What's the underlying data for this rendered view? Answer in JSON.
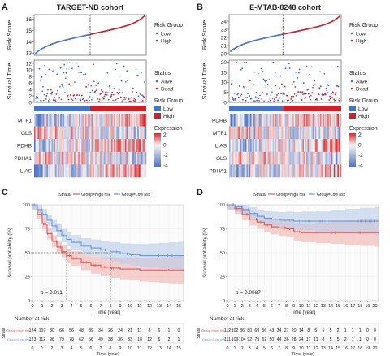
{
  "colors": {
    "low": "#4a74c0",
    "high": "#c8232b",
    "alive": "#3f6fd0",
    "dead": "#c81e2a",
    "km_high": "#e0575b",
    "km_high_ci": "#f2b2ae",
    "km_low": "#6f96d4",
    "km_low_ci": "#b8cde9",
    "heat_low": "#4a6fc0",
    "heat_mid": "#f4f4f4",
    "heat_high": "#d8282e"
  },
  "panel_labels": {
    "A": "A",
    "B": "B",
    "C": "C",
    "D": "D"
  },
  "chart_data": [
    {
      "type": "scatter",
      "panel": "A",
      "title": "TARGET-NB cohort",
      "risk_score": {
        "ylabel": "Risk Score",
        "yticks": [
          13,
          14,
          15,
          16
        ],
        "ylim": [
          12.8,
          16.4
        ],
        "range": [
          13.0,
          16.3
        ],
        "cutoff_fraction": 0.5
      },
      "survival_time": {
        "ylabel": "Survival Time",
        "yticks": [
          0,
          2,
          4,
          6,
          8,
          10,
          12
        ],
        "ylim": [
          0,
          13
        ]
      },
      "risk_group_legend": {
        "title": "Risk Group",
        "items": [
          "Low",
          "High"
        ]
      },
      "status_legend": {
        "title": "Status",
        "items": [
          "Alive",
          "Dead"
        ]
      },
      "bar_legend": {
        "title": "Risk Group",
        "items": [
          "Low",
          "High"
        ]
      },
      "heatmap": {
        "genes": [
          "MTF1",
          "GLS",
          "PDHB",
          "PDHA1",
          "LIAS"
        ],
        "legend_title": "Expression",
        "legend_ticks": [
          2,
          0,
          -2,
          -4
        ]
      }
    },
    {
      "type": "scatter",
      "panel": "B",
      "title": "E-MTAB-8248 cohort",
      "risk_score": {
        "ylabel": "Risk Score",
        "yticks": [
          20,
          21,
          22,
          23,
          24
        ],
        "ylim": [
          19.8,
          24.8
        ],
        "range": [
          20.3,
          24.6
        ],
        "cutoff_fraction": 0.48
      },
      "survival_time": {
        "ylabel": "Survival Time",
        "yticks": [
          0,
          5,
          10,
          15,
          20
        ],
        "ylim": [
          0,
          21
        ]
      },
      "risk_group_legend": {
        "title": "Risk Group",
        "items": [
          "Low",
          "High"
        ]
      },
      "status_legend": {
        "title": "Status",
        "items": [
          "Alive",
          "Dead"
        ]
      },
      "bar_legend": {
        "title": "Risk Group",
        "items": [
          "Low",
          "High"
        ]
      },
      "heatmap": {
        "genes": [
          "PDHB",
          "MTF1",
          "LIAS",
          "GLS",
          "PDHA1"
        ],
        "legend_title": "Expression",
        "legend_ticks": [
          2,
          0,
          -2,
          -4
        ]
      }
    },
    {
      "type": "line",
      "panel": "C",
      "legend_title": "Strata",
      "series": [
        {
          "name": "Group=High risk",
          "x": [
            0,
            0.5,
            1,
            1.5,
            2,
            2.5,
            3,
            3.5,
            4,
            5,
            6,
            7,
            8,
            9,
            10,
            11,
            12,
            13,
            14,
            15
          ],
          "y": [
            1.0,
            0.9,
            0.8,
            0.7,
            0.62,
            0.56,
            0.51,
            0.47,
            0.44,
            0.4,
            0.37,
            0.35,
            0.34,
            0.33,
            0.33,
            0.32,
            0.32,
            0.32,
            0.32,
            0.32
          ]
        },
        {
          "name": "Group=Low risk",
          "x": [
            0,
            0.5,
            1,
            1.5,
            2,
            2.5,
            3,
            3.5,
            4,
            5,
            6,
            7,
            8,
            9,
            10,
            11,
            12,
            13,
            14,
            15
          ],
          "y": [
            1.0,
            0.95,
            0.9,
            0.84,
            0.78,
            0.73,
            0.68,
            0.64,
            0.61,
            0.57,
            0.55,
            0.53,
            0.51,
            0.49,
            0.48,
            0.47,
            0.47,
            0.47,
            0.47,
            0.47
          ]
        }
      ],
      "median_times": [
        3.5,
        8.0
      ],
      "ylabel": "Survival probability (%)",
      "xlabel": "Time (year)",
      "yticks": [
        0,
        25,
        50,
        75,
        100
      ],
      "xticks": [
        0,
        1,
        2,
        3,
        4,
        5,
        6,
        7,
        8,
        9,
        10,
        11,
        12,
        13,
        14,
        15
      ],
      "xlim": [
        0,
        15.5
      ],
      "ylim": [
        0,
        100
      ],
      "pvalue": "p = 0.011",
      "risk_table": {
        "title": "Number at risk",
        "ylabel": "Strata",
        "rows": [
          {
            "label": "Group=High risk",
            "values": [
              "124",
              "107",
              "80",
              "66",
              "56",
              "48",
              "39",
              "34",
              "26",
              "24",
              "21",
              "11",
              "8",
              "6",
              "1",
              "0"
            ]
          },
          {
            "label": "Group=Low risk",
            "values": [
              "123",
              "112",
              "96",
              "79",
              "70",
              "62",
              "56",
              "49",
              "38",
              "36",
              "33",
              "18",
              "12",
              "6",
              "2",
              "1"
            ]
          }
        ]
      }
    },
    {
      "type": "line",
      "panel": "D",
      "legend_title": "Strata",
      "series": [
        {
          "name": "Group=High risk",
          "x": [
            0,
            1,
            2,
            3,
            4,
            5,
            6,
            7,
            8,
            9,
            10,
            12,
            14,
            16,
            18,
            20
          ],
          "y": [
            1.0,
            0.96,
            0.9,
            0.85,
            0.82,
            0.79,
            0.77,
            0.76,
            0.75,
            0.72,
            0.71,
            0.71,
            0.71,
            0.71,
            0.71,
            0.71
          ]
        },
        {
          "name": "Group=Low risk",
          "x": [
            0,
            1,
            2,
            3,
            4,
            5,
            6,
            7,
            8,
            9,
            10,
            12,
            14,
            16,
            18,
            20
          ],
          "y": [
            1.0,
            0.98,
            0.95,
            0.91,
            0.88,
            0.86,
            0.85,
            0.84,
            0.84,
            0.83,
            0.83,
            0.83,
            0.83,
            0.83,
            0.83,
            0.83
          ]
        }
      ],
      "ylabel": "Survival probability (%)",
      "xlabel": "Time (year)",
      "yticks": [
        0,
        25,
        50,
        75,
        100
      ],
      "xticks": [
        0,
        1,
        2,
        3,
        4,
        5,
        6,
        7,
        8,
        9,
        10,
        11,
        12,
        13,
        14,
        15,
        16,
        17,
        18,
        19,
        20
      ],
      "xlim": [
        0,
        20.5
      ],
      "ylim": [
        0,
        100
      ],
      "pvalue": "p = 0.0087",
      "risk_table": {
        "title": "Number at risk",
        "ylabel": "Strata",
        "rows": [
          {
            "label": "Group=High risk",
            "values": [
              "112",
              "102",
              "86",
              "80",
              "69",
              "56",
              "43",
              "34",
              "27",
              "20",
              "14",
              "8",
              "5",
              "5",
              "5",
              "2",
              "1",
              "1",
              "1",
              "0",
              "0"
            ]
          },
          {
            "label": "Group=Low risk",
            "values": [
              "111",
              "109",
              "104",
              "92",
              "79",
              "62",
              "50",
              "44",
              "36",
              "28",
              "24",
              "17",
              "11",
              "8",
              "5",
              "5",
              "2",
              "1",
              "1",
              "0",
              "0"
            ]
          }
        ]
      }
    }
  ]
}
